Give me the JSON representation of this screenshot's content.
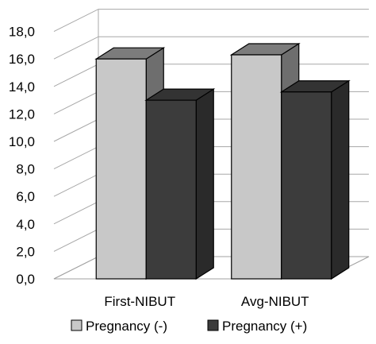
{
  "chart_data": {
    "type": "bar",
    "style": "3d-clustered-column",
    "categories": [
      "First-NIBUT",
      "Avg-NIBUT"
    ],
    "series": [
      {
        "name": "Pregnancy (-)",
        "values": [
          16.0,
          16.3
        ],
        "color": "#c8c8c8"
      },
      {
        "name": "Pregnancy (+)",
        "values": [
          13.0,
          13.6
        ],
        "color": "#3c3c3c"
      }
    ],
    "ylim": [
      0,
      18
    ],
    "yticks": [
      "0,0",
      "2,0",
      "4,0",
      "6,0",
      "8,0",
      "10,0",
      "12,0",
      "14,0",
      "16,0",
      "18,0"
    ],
    "grid": true,
    "legend_position": "bottom"
  }
}
